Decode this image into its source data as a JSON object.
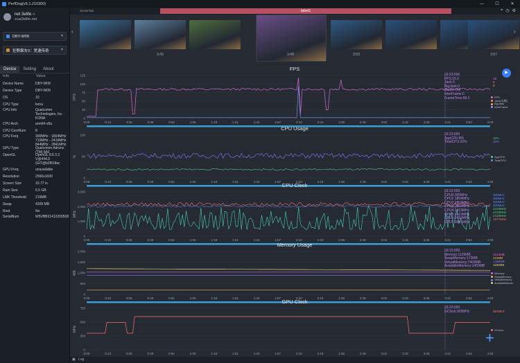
{
  "window": {
    "title": "PerfDog(v5.1.210300)"
  },
  "user": {
    "name": "net 3elife ○",
    "email": "xcai3elife.net"
  },
  "device_select": {
    "value": "DBY-W09"
  },
  "app_select": {
    "value": "狂野飙车9：竞速传奇"
  },
  "tabs": [
    "Device",
    "Setting",
    "About"
  ],
  "info_header": {
    "key": "Info",
    "value": "Value"
  },
  "info_rows": [
    {
      "k": "Device Name",
      "v": "DBY-W09",
      "y": 107
    },
    {
      "k": "Device Type",
      "v": "DBY-W09",
      "y": 117
    },
    {
      "k": "OS",
      "v": "10",
      "y": 127
    },
    {
      "k": "CPU Type",
      "v": "kona",
      "y": 137
    },
    {
      "k": "CPU Info",
      "v": "Qualcomm Technologies, Inc KONA",
      "y": 145
    },
    {
      "k": "CPU Arch",
      "v": "arm64-v8a",
      "y": 165
    },
    {
      "k": "CPU CoreNum",
      "v": "8",
      "y": 175
    },
    {
      "k": "CPU Freq",
      "v": "300MHz - 1804MHz 710MHz - 2419MHz 844MHz - 2841MHz",
      "y": 183
    },
    {
      "k": "GPU Type",
      "v": "Qualcomm Adreno (TM) 650",
      "y": 200
    },
    {
      "k": "OpenGL",
      "v": "OpenGL ES 3.2 V@444.0 (GIT@b2f818ac",
      "y": 210
    },
    {
      "k": "GPU Freq",
      "v": "unavailable",
      "y": 231
    },
    {
      "k": "Resolution",
      "v": "2560x1600",
      "y": 241
    },
    {
      "k": "Screen Size",
      "v": "10.77 in",
      "y": 251
    },
    {
      "k": "Ram Size",
      "v": "5.5 GB",
      "y": 261
    },
    {
      "k": "LMK Threshold",
      "v": "216MB",
      "y": 271
    },
    {
      "k": "Swap",
      "v": "4309 MB",
      "y": 281
    },
    {
      "k": "Root",
      "v": "No",
      "y": 291
    },
    {
      "k": "SerialNum",
      "v": "W5VBB21412200508",
      "y": 299
    }
  ],
  "top": {
    "scene_tab": "SceneTab",
    "label": "label1"
  },
  "thumbs": [
    {
      "t": "",
      "c": "#3a6f9a"
    },
    {
      "t": "3:43",
      "c": "#5e7f9e"
    },
    {
      "t": "",
      "c": "#4f6e3d"
    },
    {
      "t": "3:49",
      "c": "#6a4e86"
    },
    {
      "t": "3:53",
      "c": "#2f5a86"
    },
    {
      "t": "",
      "c": "#2a4f7a"
    },
    {
      "t": "",
      "c": "#2a4f7a"
    },
    {
      "t": "3:57",
      "c": "#2a4f7a"
    }
  ],
  "x_ticks": [
    "0:00",
    "0:13",
    "0:26",
    "0:39",
    "0:52",
    "1:05",
    "1:18",
    "1:31",
    "1:44",
    "1:57",
    "2:10",
    "2:23",
    "2:36",
    "2:49",
    "3:02",
    "3:15",
    "3:28",
    "3:41",
    "3:54",
    "4:00"
  ],
  "panels": [
    {
      "title": "FPS",
      "ylabel": "FPS",
      "yticks": [
        "125",
        "100",
        "75",
        "50",
        "25",
        "0"
      ],
      "tooltip": [
        "03:23:000",
        "FPS:15.0",
        "Jank:0",
        "BigJank:0",
        "Stutter:0%",
        "InterFrame:0",
        "FrameTime:68.0"
      ],
      "legend": [
        {
          "n": "FPS",
          "c": "#d86ad8"
        },
        {
          "n": "Jank(卡顿)",
          "c": "#ff8080"
        },
        {
          "n": "BigJank",
          "c": "#ffb347"
        },
        {
          "n": "InterFrame",
          "c": "#7aa0ff"
        }
      ],
      "rvals": [
        {
          "v": "19",
          "c": "#d86ad8"
        },
        {
          "v": "0",
          "c": "#ff8080"
        },
        {
          "v": "0",
          "c": "#ffb347"
        }
      ]
    },
    {
      "title": "CPU Usage",
      "ylabel": "%",
      "yticks": [
        "100",
        "50",
        "0"
      ],
      "tooltip": [
        "03:23:000",
        "AppCPU:8%",
        "TotalCPU:20%"
      ],
      "legend": [
        {
          "n": "AppCPU",
          "c": "#56d17a"
        },
        {
          "n": "TotalCPU",
          "c": "#7f7fff"
        }
      ],
      "rvals": [
        {
          "v": "11%",
          "c": "#56d17a"
        },
        {
          "v": "30%",
          "c": "#7f7fff"
        }
      ]
    },
    {
      "title": "CPU Clock",
      "ylabel": "MHz",
      "yticks": [
        "3,000",
        "2,000",
        "1,000",
        "0"
      ],
      "tooltip": [
        "03:23:000",
        "CPU0:300MHz",
        "CPU1:1804MHz",
        "CPU2:1804MHz",
        "CPU3:1804MHz",
        "CPU4:2419MHz",
        "CPU5:2419MHz",
        "CPU6:2419MHz",
        "CPU7:2841MHz"
      ],
      "legend": [],
      "rvals": [
        {
          "v": "300MHz",
          "c": "#5b8cff"
        },
        {
          "v": "300MHz",
          "c": "#5b8cff"
        },
        {
          "v": "300MHz",
          "c": "#5b8cff"
        },
        {
          "v": "300MHz",
          "c": "#5b8cff"
        },
        {
          "v": "2419MHz",
          "c": "#56d17a"
        },
        {
          "v": "2419MHz",
          "c": "#56d17a"
        },
        {
          "v": "2419MHz",
          "c": "#56d17a"
        },
        {
          "v": "1977MHz",
          "c": "#ff6e6e"
        }
      ]
    },
    {
      "title": "Memory Usage",
      "ylabel": "MB",
      "yticks": [
        "2,000",
        "1,500",
        "1,000",
        "500",
        "0"
      ],
      "tooltip": [
        "03:23:000",
        "Memory:1129MB",
        "SwapMemory:172MB",
        "VirtualMemory:7403MB",
        "AvailableMemory:1459MB"
      ],
      "legend": [
        {
          "n": "Memory",
          "c": "#d86ad8"
        },
        {
          "n": "SwapMemory",
          "c": "#ffb347"
        },
        {
          "n": "VirtualMemory",
          "c": "#7f7fff"
        },
        {
          "n": "AvailableMemo",
          "c": "#e5d36a"
        }
      ],
      "rvals": [
        {
          "v": "1014MB",
          "c": "#d86ad8"
        },
        {
          "v": "223MB",
          "c": "#ffb347"
        },
        {
          "v": "1459MB",
          "c": "#7f7fff"
        },
        {
          "v": "1190MB",
          "c": "#e5d36a"
        }
      ]
    },
    {
      "title": "GPU Clock",
      "ylabel": "MHz",
      "yticks": [
        "750",
        "500",
        "250",
        "0"
      ],
      "tooltip": [
        "03:23:000",
        "GClock:305MHz"
      ],
      "legend": [
        {
          "n": "GClock",
          "c": "#ff6e6e"
        }
      ],
      "rvals": [
        {
          "v": "587MHz",
          "c": "#ff6e6e"
        }
      ]
    }
  ],
  "bottom": {
    "log_label": "Log"
  }
}
